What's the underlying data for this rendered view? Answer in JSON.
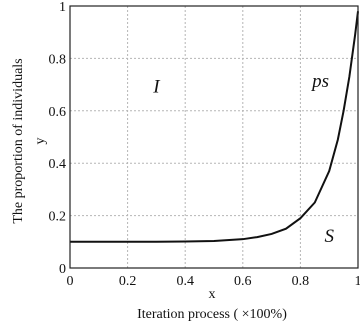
{
  "chart_data": {
    "type": "line",
    "x_axis": {
      "letter": "x",
      "label": "Iteration process ( ×100%)",
      "lim": [
        0,
        1
      ],
      "ticks": [
        0,
        0.2,
        0.4,
        0.6,
        0.8,
        1
      ],
      "tick_labels": [
        "0",
        "0.2",
        "0.4",
        "0.6",
        "0.8",
        "1"
      ]
    },
    "y_axis": {
      "letter": "y",
      "label": "The proportion of individuals",
      "lim": [
        0,
        1
      ],
      "ticks": [
        0,
        0.2,
        0.4,
        0.6,
        0.8,
        1
      ],
      "tick_labels": [
        "0",
        "0.2",
        "0.4",
        "0.6",
        "0.8",
        "1"
      ]
    },
    "grid": true,
    "series": [
      {
        "x": [
          0,
          0.1,
          0.2,
          0.3,
          0.4,
          0.5,
          0.6,
          0.65,
          0.7,
          0.75,
          0.8,
          0.85,
          0.9,
          0.93,
          0.95,
          0.97,
          0.99,
          1.0
        ],
        "y": [
          0.1,
          0.1,
          0.1,
          0.1,
          0.101,
          0.103,
          0.11,
          0.118,
          0.13,
          0.15,
          0.19,
          0.25,
          0.37,
          0.49,
          0.6,
          0.73,
          0.89,
          0.98
        ]
      }
    ],
    "annotations": [
      {
        "text": "I",
        "x": 0.3,
        "y": 0.67
      },
      {
        "text": "ps",
        "x": 0.87,
        "y": 0.69
      },
      {
        "text": "S",
        "x": 0.9,
        "y": 0.1
      }
    ]
  }
}
